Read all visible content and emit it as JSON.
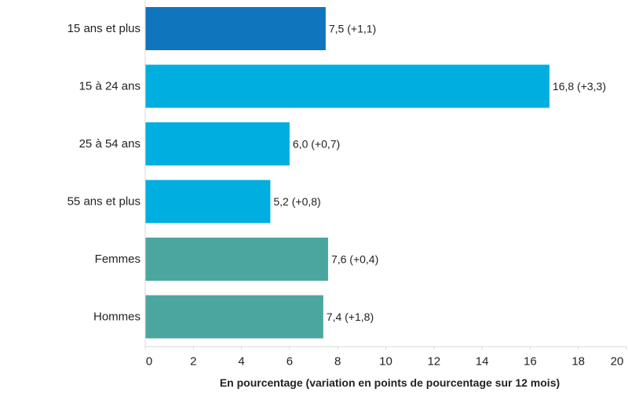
{
  "chart_data": {
    "type": "bar",
    "orientation": "horizontal",
    "title": "",
    "xlabel": "En pourcentage (variation en points de pourcentage sur 12 mois)",
    "ylabel": "",
    "xlim": [
      0,
      20
    ],
    "x_ticks": [
      0,
      2,
      4,
      6,
      8,
      10,
      12,
      14,
      16,
      18,
      20
    ],
    "grid": false,
    "categories": [
      "15 ans et plus",
      "15 à 24 ans",
      "25 à 54 ans",
      "55 ans et plus",
      "Femmes",
      "Hommes"
    ],
    "values": [
      7.5,
      16.8,
      6.0,
      5.2,
      7.6,
      7.4
    ],
    "changes": [
      1.1,
      3.3,
      0.7,
      0.8,
      0.4,
      1.8
    ],
    "data_labels": [
      "7,5 (+1,1)",
      "16,8 (+3,3)",
      "6,0 (+0,7)",
      "5,2 (+0,8)",
      "7,6 (+0,4)",
      "7,4 (+1,8)"
    ],
    "bar_colors": [
      "#0F75BC",
      "#00AEDF",
      "#00AEDF",
      "#00AEDF",
      "#4BA69F",
      "#4BA69F"
    ],
    "axis_color": "#D9D9D9",
    "text_color": "#222222"
  }
}
